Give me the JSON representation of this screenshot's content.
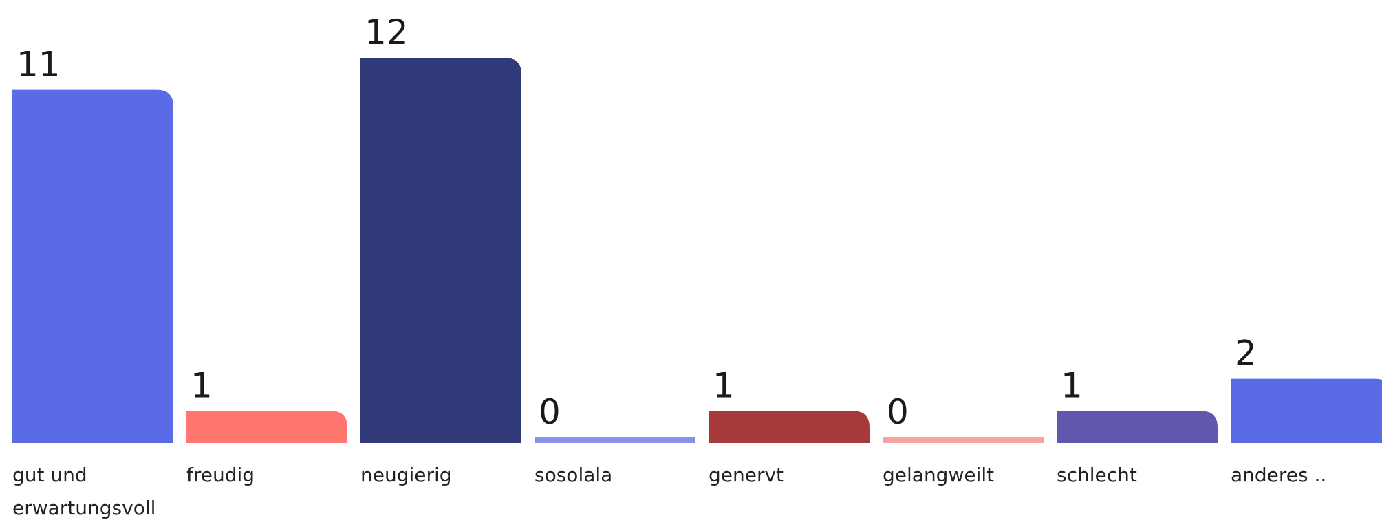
{
  "chart_data": {
    "type": "bar",
    "categories": [
      [
        "gut und",
        "erwartungsvoll"
      ],
      [
        "freudig"
      ],
      [
        "neugierig"
      ],
      [
        "sosolala"
      ],
      [
        "genervt"
      ],
      [
        "gelangweilt"
      ],
      [
        "schlecht"
      ],
      [
        "anderes .."
      ]
    ],
    "values": [
      11,
      1,
      12,
      0,
      1,
      0,
      1,
      2
    ],
    "colors": [
      "#5a6be6",
      "#ff7570",
      "#313b7a",
      "#8b90ee",
      "#a63a3a",
      "#f9a3a3",
      "#5f58ad",
      "#5a6be6"
    ],
    "ylim": [
      0,
      12
    ],
    "grid": false,
    "legend": "none"
  }
}
